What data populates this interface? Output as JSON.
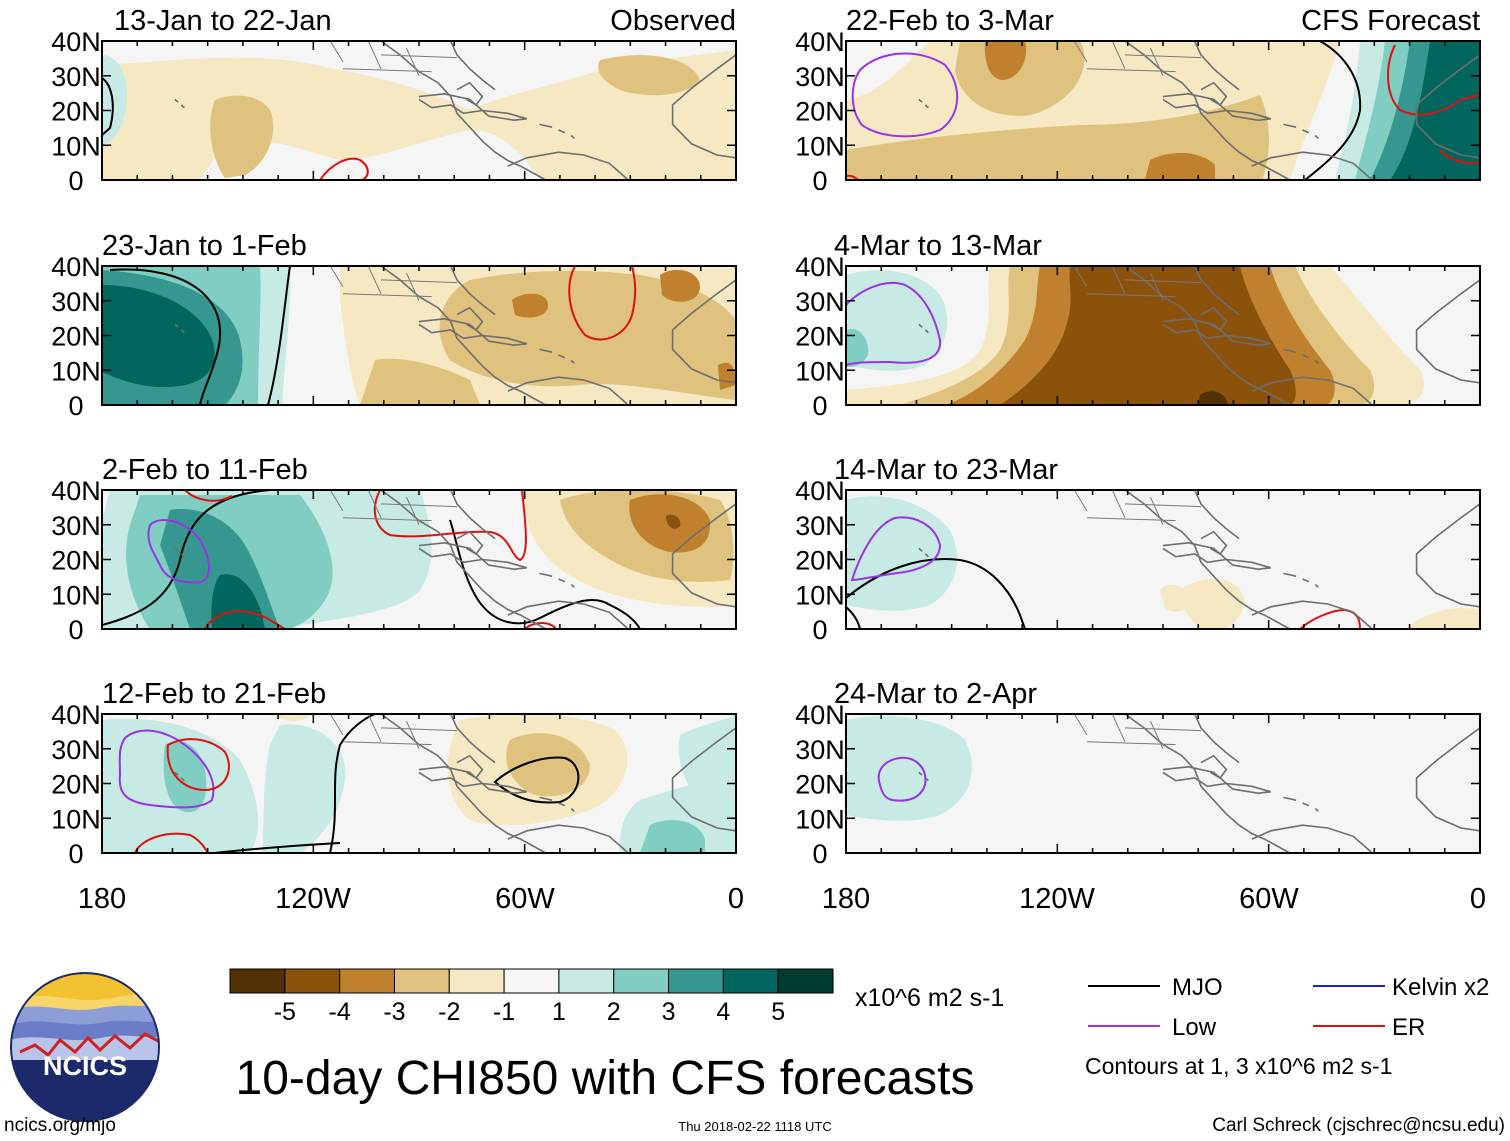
{
  "chart_data": {
    "type": "heatmap",
    "title": "10-day CHI850 with CFS forecasts",
    "variable": "CHI850",
    "units": "x10^6 m2 s-1",
    "colorbar": {
      "levels": [
        -5,
        -4,
        -3,
        -2,
        -1,
        1,
        2,
        3,
        4,
        5
      ],
      "labels": [
        "-5",
        "-4",
        "-3",
        "-2",
        "-1",
        "1",
        "2",
        "3",
        "4",
        "5"
      ],
      "colors": [
        "#543005",
        "#8c510a",
        "#bf812d",
        "#dfc27d",
        "#f6e8c3",
        "#f5f5f5",
        "#c7eae5",
        "#80cdc1",
        "#35978f",
        "#01665e",
        "#003c30"
      ]
    },
    "x_ticks": [
      "180",
      "120W",
      "60W",
      "0"
    ],
    "y_ticks": [
      "40N",
      "30N",
      "20N",
      "10N",
      "0"
    ],
    "contour_note": "Contours at 1, 3 x10^6 m2 s-1",
    "legend": [
      {
        "name": "MJO",
        "color": "#000000"
      },
      {
        "name": "Kelvin x2",
        "color": "#1f1fe0"
      },
      {
        "name": "Low",
        "color": "#9a32e6"
      },
      {
        "name": "ER",
        "color": "#e01010"
      }
    ],
    "panels": [
      {
        "period": "13-Jan to 22-Jan",
        "tag": "Observed",
        "column": 0,
        "row": 0
      },
      {
        "period": "23-Jan to 1-Feb",
        "tag": "",
        "column": 0,
        "row": 1
      },
      {
        "period": "2-Feb to 11-Feb",
        "tag": "",
        "column": 0,
        "row": 2
      },
      {
        "period": "12-Feb to 21-Feb",
        "tag": "",
        "column": 0,
        "row": 3
      },
      {
        "period": "22-Feb to 3-Mar",
        "tag": "CFS Forecast",
        "column": 1,
        "row": 0
      },
      {
        "period": "4-Mar to 13-Mar",
        "tag": "",
        "column": 1,
        "row": 1
      },
      {
        "period": "14-Mar to 23-Mar",
        "tag": "",
        "column": 1,
        "row": 2
      },
      {
        "period": "24-Mar to 2-Apr",
        "tag": "",
        "column": 1,
        "row": 3
      }
    ]
  },
  "logo": {
    "text": "NCICS"
  },
  "footer": {
    "url": "ncics.org/mjo",
    "timestamp": "Thu 2018-02-22 1118 UTC",
    "credit": "Carl Schreck (cjschrec@ncsu.edu)"
  }
}
